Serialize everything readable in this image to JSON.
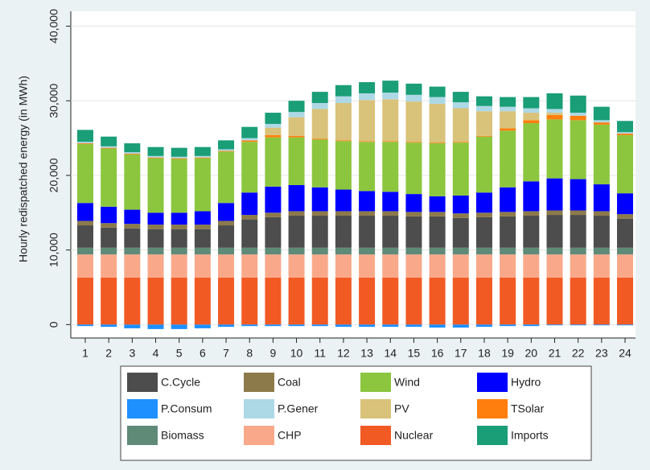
{
  "chart_data": {
    "type": "stacked-bar",
    "y_label": "Hourly redispatched energy (in MWh)",
    "categories": [
      "1",
      "2",
      "3",
      "4",
      "5",
      "6",
      "7",
      "8",
      "9",
      "10",
      "11",
      "12",
      "13",
      "14",
      "15",
      "16",
      "17",
      "18",
      "19",
      "20",
      "21",
      "22",
      "23",
      "24"
    ],
    "ylim": [
      -1800,
      42000
    ],
    "yticks": [
      0,
      {
        "value": 10000,
        "label": "10,000"
      },
      {
        "value": 20000,
        "label": "20,000"
      },
      {
        "value": 30000,
        "label": "30,000"
      },
      {
        "value": 40000,
        "label": "40,000"
      }
    ],
    "grid": true,
    "series": [
      {
        "name": "C.Cycle",
        "color": "#4d4d4d",
        "values": [
          3000,
          2700,
          2600,
          2500,
          2500,
          2500,
          3000,
          3800,
          4100,
          4300,
          4300,
          4300,
          4300,
          4300,
          4200,
          4200,
          4000,
          4100,
          4200,
          4300,
          4400,
          4400,
          4300,
          3900
        ]
      },
      {
        "name": "Coal",
        "color": "#8c7a4a",
        "values": [
          600,
          600,
          600,
          600,
          600,
          600,
          600,
          600,
          600,
          600,
          600,
          600,
          600,
          600,
          600,
          600,
          600,
          600,
          600,
          600,
          600,
          600,
          600,
          600
        ]
      },
      {
        "name": "Wind",
        "color": "#8cc63f",
        "values": [
          7900,
          7800,
          7400,
          7300,
          7200,
          7100,
          6900,
          6800,
          6600,
          6400,
          6400,
          6500,
          6600,
          6700,
          6900,
          7100,
          7100,
          7500,
          7600,
          7800,
          7900,
          7900,
          8000,
          7800
        ]
      },
      {
        "name": "Hydro",
        "color": "#0000ff",
        "values": [
          2400,
          2200,
          1900,
          1600,
          1600,
          1800,
          2400,
          3000,
          3500,
          3500,
          3200,
          2900,
          2700,
          2600,
          2400,
          2100,
          2400,
          2700,
          3300,
          4000,
          4300,
          4200,
          3600,
          2800
        ]
      },
      {
        "name": "P.Consum",
        "color": "#1e90ff",
        "values": [
          -200,
          -300,
          -500,
          -600,
          -600,
          -500,
          -300,
          -200,
          -200,
          -200,
          -200,
          -300,
          -300,
          -300,
          -300,
          -400,
          -400,
          -300,
          -200,
          -200,
          -100,
          -100,
          -100,
          -100
        ]
      },
      {
        "name": "P.Gener",
        "color": "#add8e6",
        "values": [
          200,
          200,
          200,
          200,
          200,
          200,
          200,
          300,
          500,
          700,
          800,
          900,
          900,
          900,
          900,
          900,
          800,
          700,
          600,
          600,
          500,
          400,
          300,
          200
        ]
      },
      {
        "name": "PV",
        "color": "#d9c27a",
        "values": [
          0,
          0,
          0,
          0,
          0,
          0,
          0,
          0,
          1000,
          2500,
          4000,
          5000,
          5500,
          5600,
          5400,
          5200,
          4500,
          3300,
          2300,
          1000,
          300,
          0,
          0,
          0
        ]
      },
      {
        "name": "TSolar",
        "color": "#ff7f0e",
        "values": [
          100,
          100,
          100,
          100,
          100,
          100,
          100,
          200,
          300,
          200,
          100,
          100,
          100,
          100,
          100,
          100,
          100,
          100,
          300,
          400,
          600,
          600,
          300,
          200
        ]
      },
      {
        "name": "Biomass",
        "color": "#5f8a78",
        "values": [
          900,
          900,
          900,
          900,
          900,
          900,
          900,
          900,
          900,
          900,
          900,
          900,
          900,
          900,
          900,
          900,
          900,
          900,
          900,
          900,
          900,
          900,
          900,
          900
        ]
      },
      {
        "name": "CHP",
        "color": "#f9a98a",
        "values": [
          3100,
          3100,
          3100,
          3100,
          3100,
          3100,
          3100,
          3100,
          3100,
          3100,
          3100,
          3100,
          3100,
          3100,
          3100,
          3100,
          3100,
          3100,
          3100,
          3100,
          3100,
          3100,
          3100,
          3100
        ]
      },
      {
        "name": "Nuclear",
        "color": "#f25a24",
        "values": [
          6300,
          6300,
          6300,
          6300,
          6300,
          6300,
          6300,
          6300,
          6300,
          6300,
          6300,
          6300,
          6300,
          6300,
          6300,
          6300,
          6300,
          6300,
          6300,
          6300,
          6300,
          6300,
          6300,
          6300
        ]
      },
      {
        "name": "Imports",
        "color": "#1a9e77",
        "values": [
          1600,
          1300,
          1200,
          1200,
          1200,
          1200,
          1200,
          1500,
          1500,
          1500,
          1500,
          1500,
          1500,
          1600,
          1500,
          1400,
          1400,
          1300,
          1300,
          1500,
          2100,
          2300,
          1800,
          1500
        ]
      }
    ]
  }
}
